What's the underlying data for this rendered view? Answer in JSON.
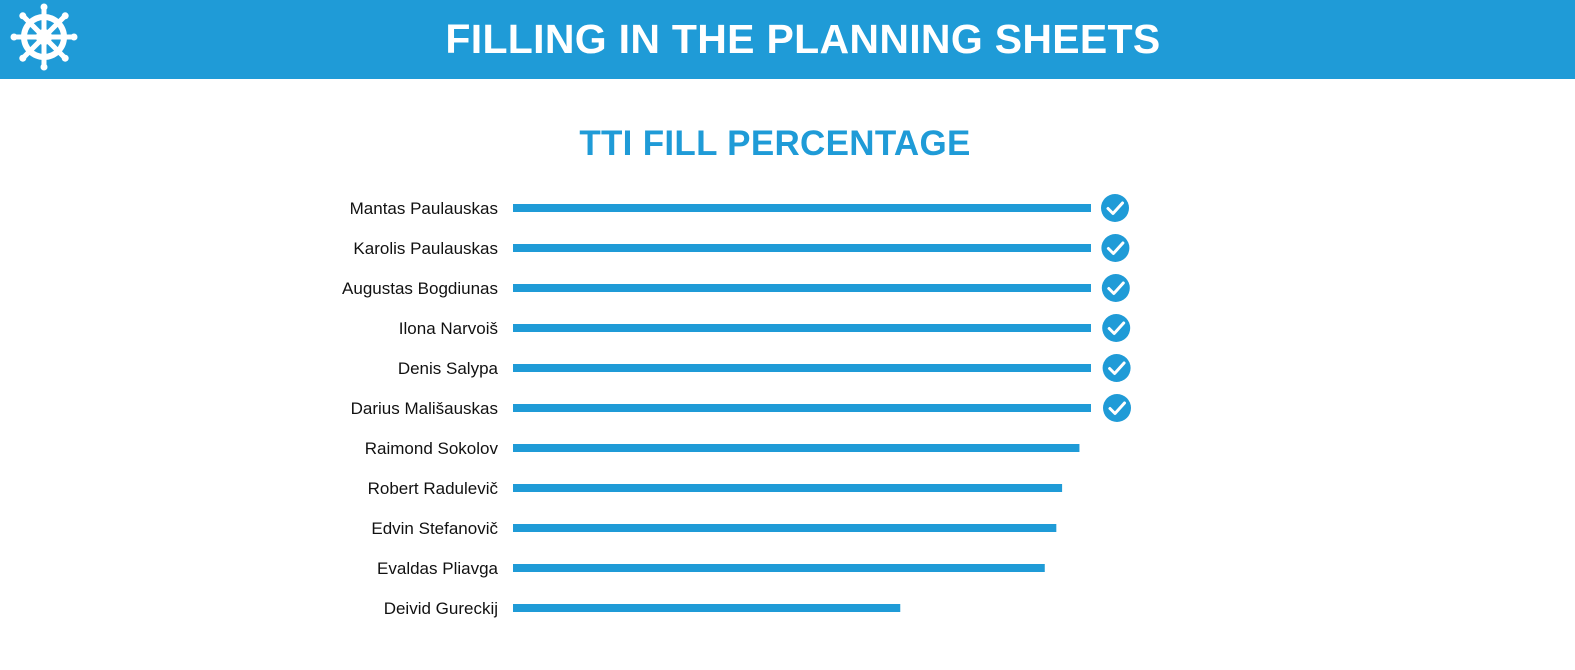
{
  "header": {
    "title": "FILLING IN THE PLANNING SHEETS",
    "logo_icon": "ship-wheel-icon"
  },
  "colors": {
    "accent": "#1f9bd7",
    "background": "#ffffff",
    "text": "#111111"
  },
  "chart_data": {
    "type": "bar",
    "orientation": "horizontal",
    "title": "TTI FILL PERCENTAGE",
    "xlabel": "",
    "ylabel": "",
    "xlim": [
      0,
      100
    ],
    "grid": false,
    "categories": [
      "Mantas Paulauskas",
      "Karolis Paulauskas",
      "Augustas Bogdiunas",
      "Ilona Narvoiš",
      "Denis Salypa",
      "Darius Mališauskas",
      "Raimond Sokolov",
      "Robert Radulevič",
      "Edvin Stefanovič",
      "Evaldas Pliavga",
      "Deivid Gureckij"
    ],
    "values": [
      100,
      100,
      100,
      100,
      100,
      100,
      98,
      95,
      94,
      92,
      67
    ],
    "completed_marker": "check-circle-icon",
    "completed": [
      true,
      true,
      true,
      true,
      true,
      true,
      false,
      false,
      false,
      false,
      false
    ]
  }
}
